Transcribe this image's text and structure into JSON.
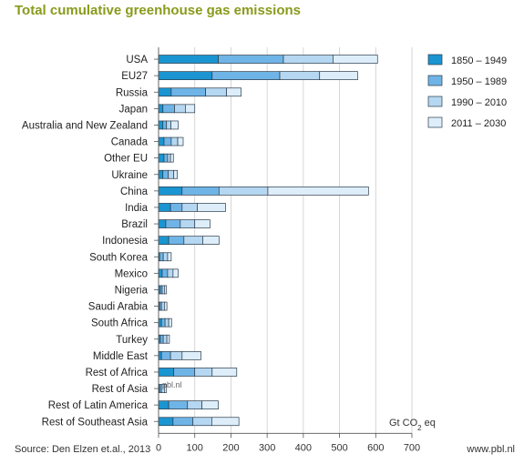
{
  "title": "Total cumulative greenhouse gas emissions",
  "source": "Source: Den Elzen et.al., 2013",
  "site": "www.pbl.nl",
  "watermark": "pbl.nl",
  "colors": {
    "title": "#8a9a1b",
    "series": [
      "#1a95d1",
      "#6fb4e6",
      "#b5d7f1",
      "#ddeefa"
    ],
    "stroke": "#2b3a48"
  },
  "chart_data": {
    "type": "bar",
    "orientation": "horizontal",
    "stacked": true,
    "title": "Total cumulative greenhouse gas emissions",
    "xlabel": "Gt CO2 eq",
    "xlim": [
      0,
      700
    ],
    "xticks": [
      0,
      100,
      200,
      300,
      400,
      500,
      600,
      700
    ],
    "categories": [
      "USA",
      "EU27",
      "Russia",
      "Japan",
      "Australia and New Zealand",
      "Canada",
      "Other EU",
      "Ukraine",
      "China",
      "India",
      "Brazil",
      "Indonesia",
      "South Korea",
      "Mexico",
      "Nigeria",
      "Saudi Arabia",
      "South Africa",
      "Turkey",
      "Middle East",
      "Rest of Africa",
      "Rest of Asia",
      "Rest of Latin America",
      "Rest of Southeast Asia"
    ],
    "series": [
      {
        "name": "1850 – 1949",
        "values": [
          165,
          148,
          35,
          12,
          12,
          15,
          15,
          12,
          65,
          33,
          20,
          28,
          3,
          10,
          5,
          3,
          8,
          5,
          8,
          42,
          3,
          28,
          40
        ]
      },
      {
        "name": "1950 – 1989",
        "values": [
          180,
          187,
          95,
          32,
          10,
          20,
          10,
          15,
          102,
          32,
          40,
          42,
          10,
          15,
          5,
          5,
          10,
          8,
          25,
          58,
          5,
          52,
          55
        ]
      },
      {
        "name": "1990 – 2010",
        "values": [
          137,
          110,
          58,
          30,
          12,
          18,
          8,
          15,
          135,
          42,
          40,
          52,
          12,
          15,
          6,
          8,
          10,
          10,
          32,
          48,
          8,
          40,
          52
        ]
      },
      {
        "name": "2011 – 2030",
        "values": [
          123,
          105,
          40,
          26,
          20,
          15,
          8,
          10,
          278,
          78,
          42,
          45,
          10,
          14,
          6,
          7,
          8,
          7,
          52,
          68,
          6,
          45,
          75
        ]
      }
    ],
    "legend_position": "right"
  }
}
